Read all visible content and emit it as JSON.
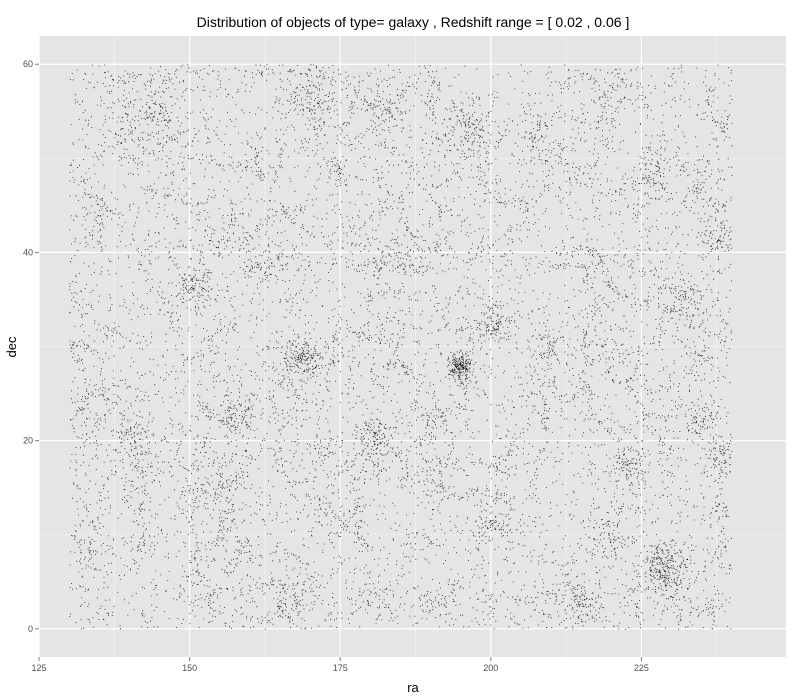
{
  "chart_data": {
    "type": "scatter",
    "title": "Distribution of objects of type= galaxy , Redshift range = [ 0.02 , 0.06 ]",
    "xlabel": "ra",
    "ylabel": "dec",
    "xlim": [
      125,
      249
    ],
    "ylim": [
      -3,
      63
    ],
    "x_ticks": [
      125,
      150,
      175,
      200,
      225
    ],
    "x_tick_labels": [
      "125",
      "150",
      "175",
      "200",
      "225"
    ],
    "y_ticks": [
      0,
      20,
      40,
      60
    ],
    "y_tick_labels": [
      "0",
      "20",
      "40",
      "60"
    ],
    "grid": true,
    "legend": "none",
    "colors": {
      "panel": "#e5e5e5",
      "grid_major": "#ffffff",
      "grid_minor": "#f2f2f2",
      "point": "#000000"
    },
    "data_region": {
      "ra": [
        130,
        240
      ],
      "dec": [
        0,
        60
      ]
    },
    "clusters": [
      {
        "ra": 194.8,
        "dec": 27.8,
        "spread": 0.9,
        "count": 220
      },
      {
        "ra": 228.8,
        "dec": 6.5,
        "spread": 1.8,
        "count": 260
      },
      {
        "ra": 169.0,
        "dec": 29.0,
        "spread": 1.3,
        "count": 140
      },
      {
        "ra": 180.5,
        "dec": 20.5,
        "spread": 1.6,
        "count": 120
      },
      {
        "ra": 222.5,
        "dec": 17.0,
        "spread": 1.5,
        "count": 110
      },
      {
        "ra": 197.0,
        "dec": 53.0,
        "spread": 2.0,
        "count": 120
      },
      {
        "ra": 171.0,
        "dec": 56.0,
        "spread": 2.0,
        "count": 100
      },
      {
        "ra": 200.5,
        "dec": 32.5,
        "spread": 1.6,
        "count": 110
      },
      {
        "ra": 237.5,
        "dec": 41.5,
        "spread": 1.4,
        "count": 80
      },
      {
        "ra": 235.0,
        "dec": 22.0,
        "spread": 1.5,
        "count": 80
      },
      {
        "ra": 150.5,
        "dec": 36.0,
        "spread": 1.6,
        "count": 90
      },
      {
        "ra": 158.0,
        "dec": 22.5,
        "spread": 1.8,
        "count": 90
      },
      {
        "ra": 140.0,
        "dec": 20.0,
        "spread": 1.5,
        "count": 70
      },
      {
        "ra": 215.0,
        "dec": 3.0,
        "spread": 1.6,
        "count": 80
      },
      {
        "ra": 168.0,
        "dec": 3.5,
        "spread": 1.8,
        "count": 80
      },
      {
        "ra": 238.0,
        "dec": 18.5,
        "spread": 1.2,
        "count": 60
      },
      {
        "ra": 219.5,
        "dec": 9.5,
        "spread": 1.8,
        "count": 80
      },
      {
        "ra": 182.0,
        "dec": 55.0,
        "spread": 1.8,
        "count": 70
      },
      {
        "ra": 139.0,
        "dec": 54.0,
        "spread": 1.8,
        "count": 60
      },
      {
        "ra": 174.5,
        "dec": 49.0,
        "spread": 1.2,
        "count": 50
      },
      {
        "ra": 162.0,
        "dec": 39.0,
        "spread": 1.6,
        "count": 60
      },
      {
        "ra": 209.0,
        "dec": 30.0,
        "spread": 1.5,
        "count": 60
      },
      {
        "ra": 151.0,
        "dec": 14.0,
        "spread": 1.5,
        "count": 50
      },
      {
        "ra": 146.0,
        "dec": 54.5,
        "spread": 1.6,
        "count": 50
      },
      {
        "ra": 200.5,
        "dec": 11.5,
        "spread": 1.4,
        "count": 50
      },
      {
        "ra": 232.0,
        "dec": 35.0,
        "spread": 1.6,
        "count": 50
      },
      {
        "ra": 185.5,
        "dec": 39.0,
        "spread": 1.6,
        "count": 50
      },
      {
        "ra": 226.0,
        "dec": 48.5,
        "spread": 1.6,
        "count": 50
      }
    ],
    "background_points": 12000
  }
}
